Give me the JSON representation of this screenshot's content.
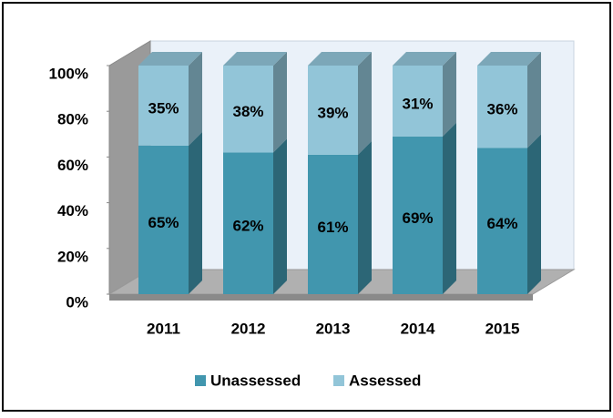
{
  "chart_data": {
    "type": "bar",
    "stacked": true,
    "categories": [
      "2011",
      "2012",
      "2013",
      "2014",
      "2015"
    ],
    "series": [
      {
        "name": "Unassessed",
        "color": "#4196ae",
        "values": [
          65,
          62,
          61,
          69,
          64
        ],
        "value_labels": [
          "65%",
          "62%",
          "61%",
          "69%",
          "64%"
        ]
      },
      {
        "name": "Assessed",
        "color": "#92c5d8",
        "values": [
          35,
          38,
          39,
          31,
          36
        ],
        "value_labels": [
          "35%",
          "38%",
          "39%",
          "31%",
          "36%"
        ]
      }
    ],
    "ylim": [
      0,
      100
    ],
    "yticks": [
      {
        "value": 0,
        "label": "0%"
      },
      {
        "value": 20,
        "label": "20%"
      },
      {
        "value": 40,
        "label": "40%"
      },
      {
        "value": 60,
        "label": "60%"
      },
      {
        "value": 80,
        "label": "80%"
      },
      {
        "value": 100,
        "label": "100%"
      }
    ],
    "legend": "bottom"
  }
}
